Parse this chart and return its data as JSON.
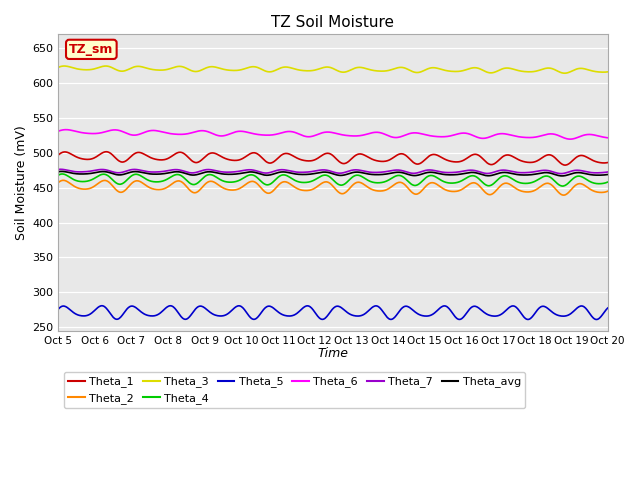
{
  "title": "TZ Soil Moisture",
  "xlabel": "Time",
  "ylabel": "Soil Moisture (mV)",
  "ylim": [
    245,
    670
  ],
  "xlim": [
    0,
    360
  ],
  "background_color": "#e8e8e8",
  "x_tick_labels": [
    "Oct 5",
    "Oct 6",
    "Oct 7",
    "Oct 8",
    "Oct 9",
    "Oct 10",
    "Oct 11",
    "Oct 12",
    "Oct 13",
    "Oct 14",
    "Oct 15",
    "Oct 16",
    "Oct 17",
    "Oct 18",
    "Oct 19",
    "Oct 20"
  ],
  "x_tick_positions": [
    0,
    24,
    48,
    72,
    96,
    120,
    144,
    168,
    192,
    216,
    240,
    264,
    288,
    312,
    336,
    360
  ],
  "yticks": [
    250,
    300,
    350,
    400,
    450,
    500,
    550,
    600,
    650
  ],
  "series": [
    {
      "name": "Theta_1",
      "color": "#cc0000",
      "base": 495,
      "trend": -0.015,
      "amp": 6,
      "freq": 0.26,
      "phase": 0.0
    },
    {
      "name": "Theta_2",
      "color": "#ff8800",
      "base": 453,
      "trend": -0.014,
      "amp": 7,
      "freq": 0.26,
      "phase": 0.3
    },
    {
      "name": "Theta_3",
      "color": "#dddd00",
      "base": 621,
      "trend": -0.01,
      "amp": 3,
      "freq": 0.26,
      "phase": 0.1
    },
    {
      "name": "Theta_4",
      "color": "#00cc00",
      "base": 463,
      "trend": -0.009,
      "amp": 6,
      "freq": 0.26,
      "phase": 0.5
    },
    {
      "name": "Theta_5",
      "color": "#0000cc",
      "base": 272,
      "trend": -0.001,
      "amp": 8,
      "freq": 0.28,
      "phase": 0.2
    },
    {
      "name": "Theta_6",
      "color": "#ff00ff",
      "base": 530,
      "trend": -0.02,
      "amp": 3,
      "freq": 0.22,
      "phase": 0.0
    },
    {
      "name": "Theta_7",
      "color": "#9900cc",
      "base": 474,
      "trend": -0.004,
      "amp": 2,
      "freq": 0.26,
      "phase": 0.8
    },
    {
      "name": "Theta_avg",
      "color": "#000000",
      "base": 471,
      "trend": -0.005,
      "amp": 2,
      "freq": 0.26,
      "phase": 0.6
    }
  ],
  "legend_box_label": "TZ_sm",
  "legend_box_facecolor": "#ffffcc",
  "legend_box_edgecolor": "#cc0000",
  "legend_ncol_row1": 6,
  "legend_order": [
    "Theta_1",
    "Theta_2",
    "Theta_3",
    "Theta_4",
    "Theta_5",
    "Theta_6",
    "Theta_7",
    "Theta_avg"
  ]
}
